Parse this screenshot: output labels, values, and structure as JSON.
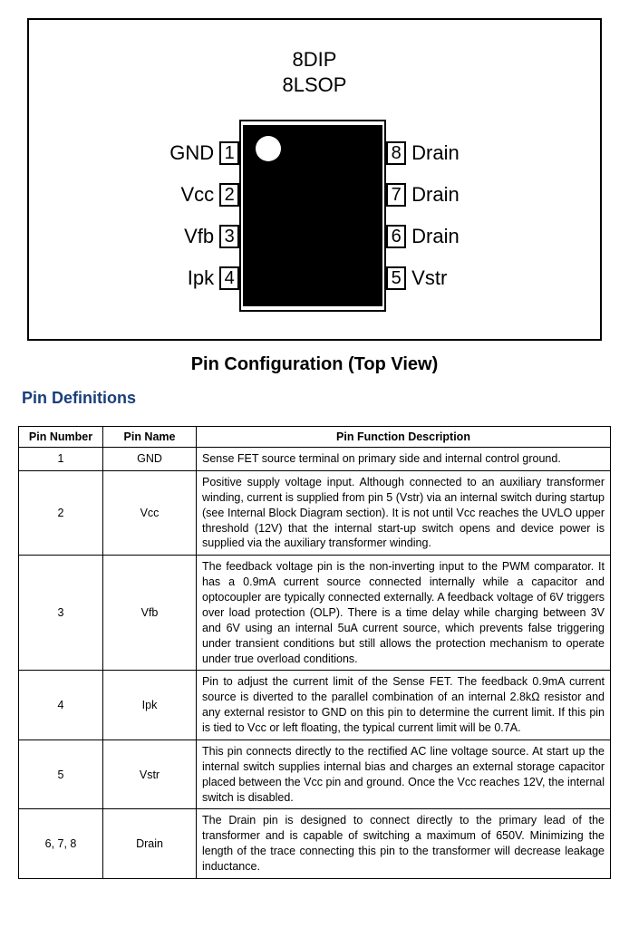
{
  "diagram": {
    "pkg_line1": "8DIP",
    "pkg_line2": "8LSOP",
    "left_pins": [
      {
        "num": "1",
        "label": "GND"
      },
      {
        "num": "2",
        "label": "Vcc"
      },
      {
        "num": "3",
        "label": "Vfb"
      },
      {
        "num": "4",
        "label": "Ipk"
      }
    ],
    "right_pins": [
      {
        "num": "8",
        "label": "Drain"
      },
      {
        "num": "7",
        "label": "Drain"
      },
      {
        "num": "6",
        "label": "Drain"
      },
      {
        "num": "5",
        "label": "Vstr"
      }
    ],
    "dot_color": "#ffffff",
    "body_color": "#000000"
  },
  "figure_title": "Pin Configuration (Top View)",
  "section_title": "Pin Definitions",
  "table": {
    "headers": {
      "num": "Pin Number",
      "name": "Pin Name",
      "desc": "Pin Function Description"
    },
    "rows": [
      {
        "num": "1",
        "name": "GND",
        "desc": "Sense FET source terminal on primary side and internal control ground."
      },
      {
        "num": "2",
        "name": "Vcc",
        "desc": "Positive supply voltage input. Although connected to an auxiliary transformer winding, current is supplied from pin 5 (Vstr) via an internal switch during startup (see Internal Block Diagram section). It is not until Vcc reaches the UVLO upper threshold (12V) that the internal start-up switch opens and device power is supplied via the auxiliary transformer winding."
      },
      {
        "num": "3",
        "name": "Vfb",
        "desc": "The feedback voltage pin is the non-inverting input to the PWM comparator. It has a 0.9mA current source connected internally while a capacitor and optocoupler are typically connected externally. A feedback voltage of 6V triggers over load protection (OLP). There is a time delay while charging between 3V and 6V using an internal 5uA current source, which prevents false triggering under transient conditions but still allows the protection mechanism to operate under true overload conditions."
      },
      {
        "num": "4",
        "name": "Ipk",
        "desc": "Pin to adjust the current limit of the Sense FET. The feedback 0.9mA current source is diverted to the parallel combination of an internal 2.8kΩ resistor and any external resistor to GND on this pin to determine the current limit. If this pin is tied to Vcc or left floating, the typical current limit will be 0.7A."
      },
      {
        "num": "5",
        "name": "Vstr",
        "desc": "This pin connects directly to the rectified AC line voltage source. At start up the internal switch supplies internal bias and charges an external storage capacitor placed between the Vcc pin and ground. Once the Vcc reaches 12V, the internal switch is disabled."
      },
      {
        "num": "6, 7, 8",
        "name": "Drain",
        "desc": "The Drain pin is designed to connect directly to the primary lead of the transformer and is capable of switching a maximum of 650V. Minimizing the length of the trace connecting this pin to the transformer will decrease leakage inductance."
      }
    ]
  },
  "colors": {
    "section_title": "#1a3e7a",
    "border": "#000000",
    "background": "#ffffff"
  }
}
